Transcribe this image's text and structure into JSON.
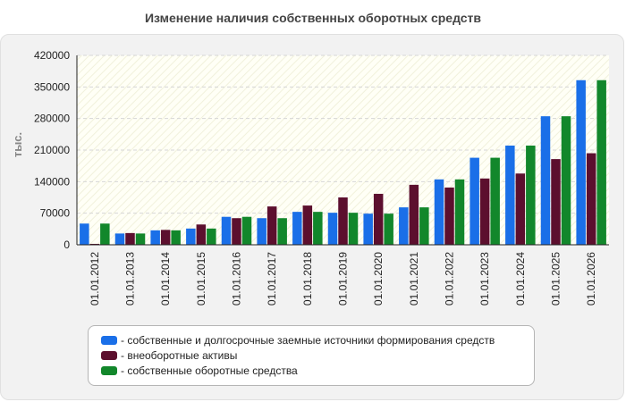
{
  "chart_data": {
    "type": "bar",
    "title": "Изменение наличия собственных оборотных средств",
    "ylabel": "тыс.",
    "xlabel": "",
    "ylim": [
      0,
      420000
    ],
    "yticks": [
      "0",
      "70000",
      "140000",
      "210000",
      "280000",
      "350000",
      "420000"
    ],
    "grid": true,
    "legend_position": "bottom",
    "categories": [
      "01.01.2012",
      "01.01.2013",
      "01.01.2014",
      "01.01.2015",
      "01.01.2016",
      "01.01.2017",
      "01.01.2018",
      "01.01.2019",
      "01.01.2020",
      "01.01.2021",
      "01.01.2022",
      "01.01.2023",
      "01.01.2024",
      "01.01.2025",
      "01.01.2026"
    ],
    "series": [
      {
        "name": "- собственные и долгосрочные заемные источники формирования средств",
        "color": "#1a6fe8",
        "values": [
          47000,
          25000,
          32000,
          36000,
          62000,
          59000,
          73000,
          71000,
          69000,
          83000,
          145000,
          193000,
          220000,
          285000,
          365000
        ]
      },
      {
        "name": "- внеоборотные активы",
        "color": "#5c0f2e",
        "values": [
          2000,
          26000,
          33000,
          45000,
          59000,
          85000,
          87000,
          105000,
          113000,
          133000,
          127000,
          147000,
          158000,
          190000,
          203000
        ]
      },
      {
        "name": "- собственные оборотные средства",
        "color": "#12872b",
        "values": [
          47000,
          25000,
          32000,
          36000,
          62000,
          59000,
          73000,
          71000,
          69000,
          83000,
          145000,
          193000,
          220000,
          285000,
          365000
        ]
      }
    ]
  }
}
